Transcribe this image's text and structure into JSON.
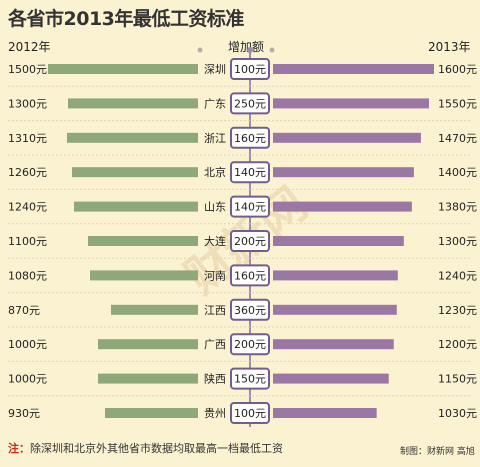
{
  "title": "各省市2013年最低工资标准",
  "header": {
    "left": "2012年",
    "middle": "增加额",
    "right": "2013年"
  },
  "note": {
    "mark": "注：",
    "text": "除深圳和北京外其他省市数据均取最高一档最低工资"
  },
  "credit": "制图：财新网 高旭",
  "colors": {
    "background": "#fbf2d2",
    "bar_2012": "#8fa87a",
    "bar_2013": "#9b77a4",
    "increase_box_border": "#6f5e8e",
    "gridline": "#ddd3b3",
    "note_mark": "#d12b1e"
  },
  "chart_data": {
    "type": "bar",
    "orientation": "diverging-horizontal",
    "categories": [
      "深圳",
      "广东",
      "浙江",
      "北京",
      "山东",
      "大连",
      "河南",
      "江西",
      "广西",
      "陕西",
      "贵州"
    ],
    "series": [
      {
        "name": "2012年",
        "values": [
          1500,
          1300,
          1310,
          1260,
          1240,
          1100,
          1080,
          870,
          1000,
          1000,
          930
        ],
        "labels": [
          "1500元",
          "1300元",
          "1310元",
          "1260元",
          "1240元",
          "1100元",
          "1080元",
          "870元",
          "1000元",
          "1000元",
          "930元"
        ]
      },
      {
        "name": "2013年",
        "values": [
          1600,
          1550,
          1470,
          1400,
          1380,
          1300,
          1240,
          1230,
          1200,
          1150,
          1030
        ],
        "labels": [
          "1600元",
          "1550元",
          "1470元",
          "1400元",
          "1380元",
          "1300元",
          "1240元",
          "1230元",
          "1200元",
          "1150元",
          "1030元"
        ]
      }
    ],
    "increase": [
      100,
      250,
      160,
      140,
      140,
      200,
      160,
      360,
      200,
      150,
      100
    ],
    "increase_labels": [
      "100元",
      "250元",
      "160元",
      "140元",
      "140元",
      "200元",
      "160元",
      "360元",
      "200元",
      "150元",
      "100元"
    ],
    "title": "各省市2013年最低工资标准",
    "legend": "top",
    "grid": true
  }
}
